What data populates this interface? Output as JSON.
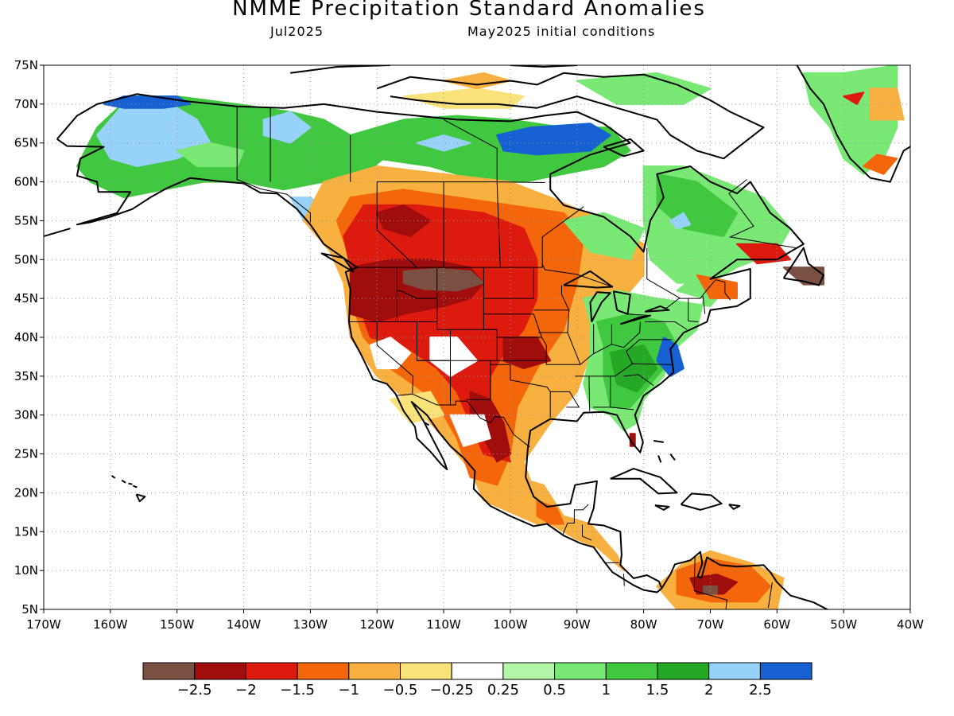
{
  "title": "NMME Precipitation Standard Anomalies",
  "subtitle_left": "Jul2025",
  "subtitle_right": "May2025 initial conditions",
  "axes": {
    "lon_labels": [
      "170W",
      "160W",
      "150W",
      "140W",
      "130W",
      "120W",
      "110W",
      "100W",
      "90W",
      "80W",
      "70W",
      "60W",
      "50W",
      "40W"
    ],
    "lat_labels": [
      "5N",
      "10N",
      "15N",
      "20N",
      "25N",
      "30N",
      "35N",
      "40N",
      "45N",
      "50N",
      "55N",
      "60N",
      "65N",
      "70N",
      "75N"
    ],
    "lon_range": [
      -170,
      -40
    ],
    "lat_range": [
      5,
      75
    ],
    "grid": "dotted"
  },
  "legend": {
    "colors": [
      "#7a5043",
      "#a00d0d",
      "#dc1a0e",
      "#f4660c",
      "#f8b040",
      "#fae27a",
      "#ffffff",
      "#b5f5a8",
      "#7ae874",
      "#40c840",
      "#25a825",
      "#96d2fa",
      "#1660d2"
    ],
    "labels": [
      "−2.5",
      "−2",
      "−1.5",
      "−1",
      "−0.5",
      "−0.25",
      "0.25",
      "0.5",
      "1",
      "1.5",
      "2",
      "2.5"
    ]
  },
  "anomaly_regions": [
    {
      "name": "Northern Rockies / Montana",
      "value": -2.5,
      "color": "#7a5043"
    },
    {
      "name": "Pacific Northwest",
      "value": -2,
      "color": "#a00d0d"
    },
    {
      "name": "Canadian Prairies",
      "value": -1.5,
      "color": "#dc1a0e"
    },
    {
      "name": "Texas / Northern Mexico",
      "value": -1.5,
      "color": "#dc1a0e"
    },
    {
      "name": "Alaska",
      "value": 1,
      "color": "#40c840"
    },
    {
      "name": "Eastern US",
      "value": 1,
      "color": "#40c840"
    },
    {
      "name": "Nunavut",
      "value": 2.5,
      "color": "#1660d2"
    },
    {
      "name": "Venezuela",
      "value": -2,
      "color": "#a00d0d"
    }
  ]
}
